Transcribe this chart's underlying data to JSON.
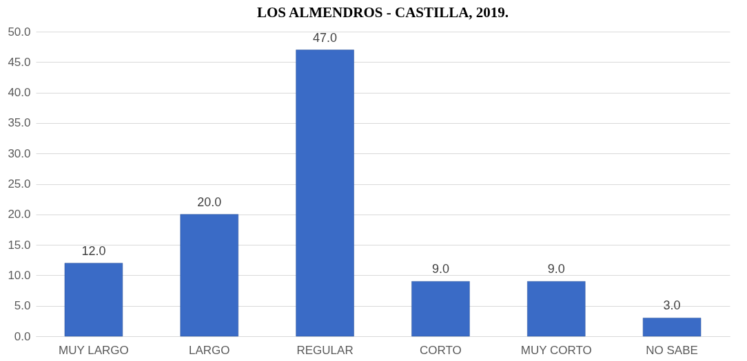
{
  "chart_data": {
    "type": "bar",
    "title": "LOS ALMENDROS - CASTILLA, 2019.",
    "categories": [
      "MUY LARGO",
      "LARGO",
      "REGULAR",
      "CORTO",
      "MUY CORTO",
      "NO SABE"
    ],
    "values": [
      12,
      20,
      47,
      9,
      9,
      3
    ],
    "value_labels": [
      "12.0",
      "20.0",
      "47.0",
      "9.0",
      "9.0",
      "3.0"
    ],
    "color": "#3a6bc6",
    "ylim": [
      0,
      50
    ],
    "yticks": [
      {
        "value": 0,
        "label": "0.0"
      },
      {
        "value": 5,
        "label": "5.0"
      },
      {
        "value": 10,
        "label": "10.0"
      },
      {
        "value": 15,
        "label": "15.0"
      },
      {
        "value": 20,
        "label": "20.0"
      },
      {
        "value": 25,
        "label": "25.0"
      },
      {
        "value": 30,
        "label": "30.0"
      },
      {
        "value": 35,
        "label": "35.0"
      },
      {
        "value": 40,
        "label": "40.0"
      },
      {
        "value": 45,
        "label": "45.0"
      },
      {
        "value": 50,
        "label": "50.0"
      }
    ],
    "grid": "y"
  }
}
